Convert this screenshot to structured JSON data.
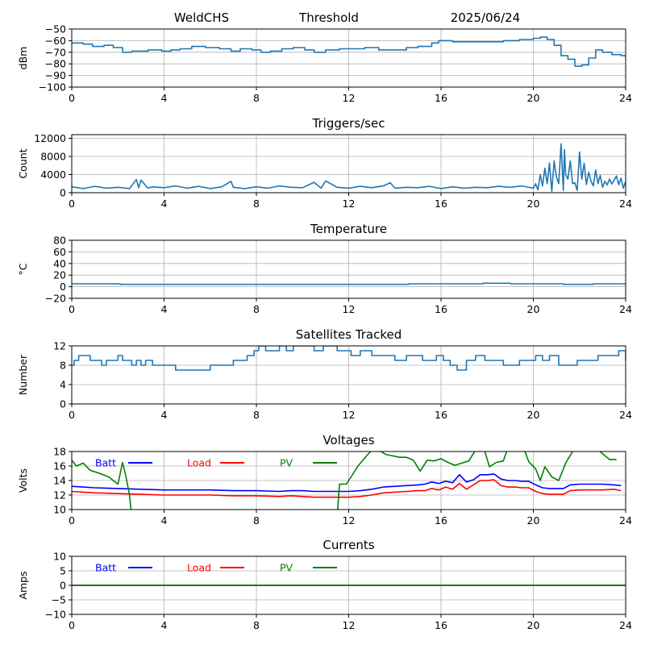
{
  "header": {
    "station": "WeldCHS",
    "mode": "Threshold",
    "date": "2025/06/24"
  },
  "colors": {
    "series": "#1f77b4",
    "grid": "#b0b0b0",
    "batt": "#0000ff",
    "load": "#ff0000",
    "pv": "#008000"
  },
  "chart_data": [
    {
      "id": "rssi",
      "type": "line",
      "title": "",
      "xlabel": "",
      "ylabel": "dBm",
      "xlim": [
        0,
        24
      ],
      "ylim": [
        -100,
        -50
      ],
      "xticks": [
        0,
        4,
        8,
        12,
        16,
        20,
        24
      ],
      "yticks": [
        -100,
        -90,
        -80,
        -70,
        -60,
        -50
      ],
      "grid": true,
      "series": [
        {
          "color": "#1f77b4",
          "step": true,
          "x": [
            0,
            0.5,
            0.9,
            1.4,
            1.8,
            2.2,
            2.6,
            3.3,
            3.9,
            4.3,
            4.7,
            5.2,
            5.8,
            6.4,
            6.9,
            7.3,
            7.8,
            8.2,
            8.6,
            9.1,
            9.6,
            10.1,
            10.5,
            11,
            11.6,
            12.2,
            12.7,
            13.3,
            13.9,
            14.5,
            15,
            15.6,
            15.9,
            16.5,
            17.2,
            18,
            18.7,
            19.4,
            20,
            20.3,
            20.6,
            20.9,
            21.2,
            21.5,
            21.8,
            22.1,
            22.4,
            22.7,
            23,
            23.4,
            23.8,
            24
          ],
          "y": [
            -62,
            -63,
            -65,
            -64,
            -66,
            -70,
            -69,
            -68,
            -69,
            -68,
            -67,
            -65,
            -66,
            -67,
            -69,
            -67,
            -68,
            -70,
            -69,
            -67,
            -66,
            -68,
            -70,
            -68,
            -67,
            -67,
            -66,
            -68,
            -68,
            -66,
            -65,
            -62,
            -60,
            -61,
            -61,
            -61,
            -60,
            -59,
            -58,
            -57,
            -59,
            -64,
            -73,
            -76,
            -82,
            -81,
            -75,
            -68,
            -70,
            -72,
            -73,
            -74
          ]
        }
      ]
    },
    {
      "id": "triggers",
      "type": "line",
      "title": "Triggers/sec",
      "xlabel": "",
      "ylabel": "Count",
      "xlim": [
        0,
        24
      ],
      "ylim": [
        0,
        12800
      ],
      "xticks": [
        0,
        4,
        8,
        12,
        16,
        20,
        24
      ],
      "yticks": [
        0,
        4000,
        8000,
        12000
      ],
      "grid": true,
      "series": [
        {
          "color": "#1f77b4",
          "step": false,
          "x": [
            0,
            0.5,
            1,
            1.5,
            2,
            2.5,
            2.8,
            2.9,
            3,
            3.3,
            3.5,
            4,
            4.5,
            5,
            5.5,
            6,
            6.5,
            6.9,
            7,
            7.5,
            8,
            8.5,
            9,
            9.5,
            10,
            10.5,
            10.8,
            11,
            11.5,
            12,
            12.5,
            13,
            13.5,
            13.8,
            14,
            14.5,
            15,
            15.5,
            16,
            16.5,
            17,
            17.5,
            18,
            18.5,
            19,
            19.5,
            20,
            20.1,
            20.2,
            20.3,
            20.4,
            20.5,
            20.6,
            20.7,
            20.8,
            20.9,
            21,
            21.1,
            21.2,
            21.3,
            21.35,
            21.4,
            21.5,
            21.6,
            21.7,
            21.8,
            21.9,
            22,
            22.1,
            22.2,
            22.3,
            22.4,
            22.5,
            22.6,
            22.7,
            22.8,
            22.9,
            23,
            23.1,
            23.2,
            23.3,
            23.4,
            23.5,
            23.6,
            23.7,
            23.8,
            23.9,
            24
          ],
          "y": [
            1300,
            900,
            1400,
            1000,
            1200,
            900,
            2900,
            1100,
            2800,
            1000,
            1300,
            1100,
            1500,
            1000,
            1400,
            900,
            1300,
            2500,
            1200,
            900,
            1300,
            1000,
            1500,
            1200,
            1100,
            2300,
            1000,
            2600,
            1200,
            1000,
            1400,
            1100,
            1500,
            2200,
            1000,
            1200,
            1100,
            1400,
            900,
            1300,
            1000,
            1200,
            1100,
            1400,
            1200,
            1500,
            1000,
            2000,
            600,
            4000,
            1500,
            5400,
            2000,
            6500,
            300,
            7000,
            3500,
            2000,
            10800,
            500,
            9500,
            4000,
            3000,
            7000,
            2000,
            2200,
            500,
            9000,
            3000,
            6500,
            1800,
            4500,
            2500,
            1500,
            5000,
            2000,
            3800,
            1200,
            2500,
            1700,
            3000,
            1900,
            2800,
            3700,
            1800,
            3200,
            1000,
            2500
          ]
        }
      ]
    },
    {
      "id": "temperature",
      "type": "line",
      "title": "Temperature",
      "xlabel": "",
      "ylabel": "°C",
      "xlim": [
        0,
        24
      ],
      "ylim": [
        -20,
        80
      ],
      "xticks": [
        0,
        4,
        8,
        12,
        16,
        20,
        24
      ],
      "yticks": [
        -20,
        0,
        20,
        40,
        60,
        80
      ],
      "grid": true,
      "series": [
        {
          "color": "#1f77b4",
          "step": true,
          "x": [
            0,
            2.1,
            14.6,
            17.8,
            19,
            21.3,
            22.6,
            24
          ],
          "y": [
            5,
            4,
            5,
            6,
            5,
            4,
            5,
            5
          ]
        }
      ]
    },
    {
      "id": "satellites",
      "type": "line",
      "title": "Satellites Tracked",
      "xlabel": "",
      "ylabel": "Number",
      "xlim": [
        0,
        24
      ],
      "ylim": [
        0,
        12
      ],
      "xticks": [
        0,
        4,
        8,
        12,
        16,
        20,
        24
      ],
      "yticks": [
        0,
        4,
        8,
        12
      ],
      "grid": true,
      "series": [
        {
          "color": "#1f77b4",
          "step": true,
          "x": [
            0,
            0.1,
            0.3,
            0.8,
            1.1,
            1.3,
            1.5,
            1.8,
            2,
            2.2,
            2.4,
            2.6,
            2.8,
            3,
            3.2,
            3.5,
            3.8,
            4,
            4.2,
            4.5,
            5,
            5.5,
            6,
            6.5,
            7,
            7.3,
            7.6,
            7.9,
            8.1,
            8.4,
            8.7,
            9,
            9.3,
            9.6,
            10,
            10.5,
            10.9,
            11.2,
            11.5,
            11.8,
            12.1,
            12.5,
            13,
            13.5,
            14,
            14.5,
            14.8,
            15.2,
            15.5,
            15.8,
            16.1,
            16.4,
            16.7,
            17.1,
            17.5,
            17.9,
            18.3,
            18.7,
            19,
            19.4,
            19.7,
            20.1,
            20.4,
            20.7,
            21.1,
            21.5,
            21.9,
            22.2,
            22.5,
            22.8,
            23.1,
            23.4,
            23.7,
            24
          ],
          "y": [
            8,
            9,
            10,
            9,
            9,
            8,
            9,
            9,
            10,
            9,
            9,
            8,
            9,
            8,
            9,
            8,
            8,
            8,
            8,
            7,
            7,
            7,
            8,
            8,
            9,
            9,
            10,
            11,
            12,
            11,
            11,
            12,
            11,
            12,
            12,
            11,
            12,
            12,
            11,
            11,
            10,
            11,
            10,
            10,
            9,
            10,
            10,
            9,
            9,
            10,
            9,
            8,
            7,
            9,
            10,
            9,
            9,
            8,
            8,
            9,
            9,
            10,
            9,
            10,
            8,
            8,
            9,
            9,
            9,
            10,
            10,
            10,
            11,
            9
          ]
        }
      ]
    },
    {
      "id": "voltages",
      "type": "line",
      "title": "Voltages",
      "xlabel": "",
      "ylabel": "Volts",
      "xlim": [
        0,
        24
      ],
      "ylim": [
        10,
        18
      ],
      "xticks": [
        0,
        4,
        8,
        12,
        16,
        20,
        24
      ],
      "yticks": [
        10,
        12,
        14,
        16,
        18
      ],
      "grid": true,
      "legend": [
        "Batt",
        "Load",
        "PV"
      ],
      "series": [
        {
          "name": "Batt",
          "color": "#0000ff",
          "step": false,
          "x": [
            0,
            0.5,
            1,
            2,
            3,
            4,
            5,
            6,
            7,
            8,
            9,
            9.5,
            10,
            10.5,
            11,
            12,
            12.5,
            13,
            13.5,
            14,
            14.5,
            15,
            15.3,
            15.6,
            15.9,
            16.2,
            16.5,
            16.8,
            17.1,
            17.4,
            17.7,
            18,
            18.3,
            18.6,
            18.9,
            19.2,
            19.5,
            19.8,
            20.1,
            20.4,
            20.7,
            21,
            21.3,
            21.6,
            22,
            23,
            23.5,
            23.8
          ],
          "y": [
            13.2,
            13.1,
            13.0,
            12.9,
            12.8,
            12.7,
            12.7,
            12.7,
            12.6,
            12.6,
            12.5,
            12.6,
            12.6,
            12.5,
            12.5,
            12.5,
            12.6,
            12.8,
            13.1,
            13.2,
            13.3,
            13.4,
            13.5,
            13.8,
            13.6,
            13.9,
            13.7,
            14.8,
            13.8,
            14.1,
            14.8,
            14.8,
            14.9,
            14.2,
            14.0,
            14.0,
            13.9,
            13.9,
            13.4,
            13.0,
            12.9,
            12.9,
            12.9,
            13.4,
            13.5,
            13.5,
            13.4,
            13.3
          ]
        },
        {
          "name": "Load",
          "color": "#ff0000",
          "step": false,
          "x": [
            0,
            0.5,
            1,
            2,
            3,
            4,
            5,
            6,
            7,
            8,
            9,
            9.5,
            10,
            10.5,
            11,
            12,
            12.5,
            13,
            13.5,
            14,
            14.5,
            15,
            15.3,
            15.6,
            15.9,
            16.2,
            16.5,
            16.8,
            17.1,
            17.4,
            17.7,
            18,
            18.3,
            18.6,
            18.9,
            19.2,
            19.5,
            19.8,
            20.1,
            20.4,
            20.7,
            21,
            21.3,
            21.6,
            22,
            23,
            23.5,
            23.8
          ],
          "y": [
            12.5,
            12.4,
            12.3,
            12.2,
            12.1,
            12.0,
            12.0,
            12.0,
            11.9,
            11.9,
            11.8,
            11.9,
            11.8,
            11.7,
            11.7,
            11.7,
            11.8,
            12.0,
            12.3,
            12.4,
            12.5,
            12.6,
            12.6,
            12.9,
            12.7,
            13.1,
            12.8,
            13.6,
            12.8,
            13.4,
            14.0,
            14.0,
            14.1,
            13.3,
            13.1,
            13.1,
            13.0,
            13.0,
            12.5,
            12.2,
            12.1,
            12.1,
            12.1,
            12.6,
            12.7,
            12.7,
            12.8,
            12.6
          ]
        },
        {
          "name": "PV",
          "color": "#008000",
          "step": false,
          "x": [
            0,
            0.2,
            0.5,
            0.8,
            1.2,
            1.6,
            1.8,
            2.0,
            2.2,
            2.35,
            2.5,
            2.6,
            11.5,
            11.6,
            11.9,
            12.1,
            12.4,
            12.8,
            13.1,
            13.4,
            13.6,
            13.9,
            14.2,
            14.5,
            14.8,
            15.1,
            15.4,
            15.7,
            16,
            16.3,
            16.6,
            16.9,
            17.2,
            17.5,
            17.8,
            18.1,
            18.4,
            18.7,
            18.9,
            19.2,
            19.5,
            19.8,
            20.1,
            20.3,
            20.5,
            20.8,
            21.1,
            21.4,
            21.7,
            22.0,
            22.5,
            23.0,
            23.3,
            23.6
          ],
          "y": [
            16.8,
            16.0,
            16.4,
            15.4,
            15.0,
            14.5,
            14.0,
            13.5,
            16.5,
            14.5,
            12.0,
            9.0,
            9.0,
            13.5,
            13.5,
            14.5,
            16.0,
            17.5,
            18.5,
            18.0,
            17.6,
            17.4,
            17.2,
            17.2,
            16.8,
            15.3,
            16.8,
            16.7,
            17.0,
            16.5,
            16.1,
            16.4,
            16.7,
            18.2,
            19.0,
            15.9,
            16.5,
            16.7,
            18.5,
            19.0,
            19.2,
            16.6,
            15.6,
            14.0,
            15.9,
            14.5,
            14.0,
            16.4,
            18.0,
            19.0,
            19.0,
            17.7,
            16.9,
            16.9
          ]
        }
      ]
    },
    {
      "id": "currents",
      "type": "line",
      "title": "Currents",
      "xlabel": "",
      "ylabel": "Amps",
      "xlim": [
        0,
        24
      ],
      "ylim": [
        -10,
        10
      ],
      "xticks": [
        0,
        4,
        8,
        12,
        16,
        20,
        24
      ],
      "yticks": [
        -10,
        -5,
        0,
        5,
        10
      ],
      "grid": true,
      "legend": [
        "Batt",
        "Load",
        "PV"
      ],
      "series": [
        {
          "name": "Batt",
          "color": "#0000ff",
          "step": false,
          "x": [
            0,
            24
          ],
          "y": [
            0,
            0
          ]
        },
        {
          "name": "Load",
          "color": "#ff0000",
          "step": false,
          "x": [
            0,
            24
          ],
          "y": [
            0,
            0
          ]
        },
        {
          "name": "PV",
          "color": "#008000",
          "step": false,
          "x": [
            0,
            24
          ],
          "y": [
            0,
            0
          ]
        }
      ]
    }
  ]
}
